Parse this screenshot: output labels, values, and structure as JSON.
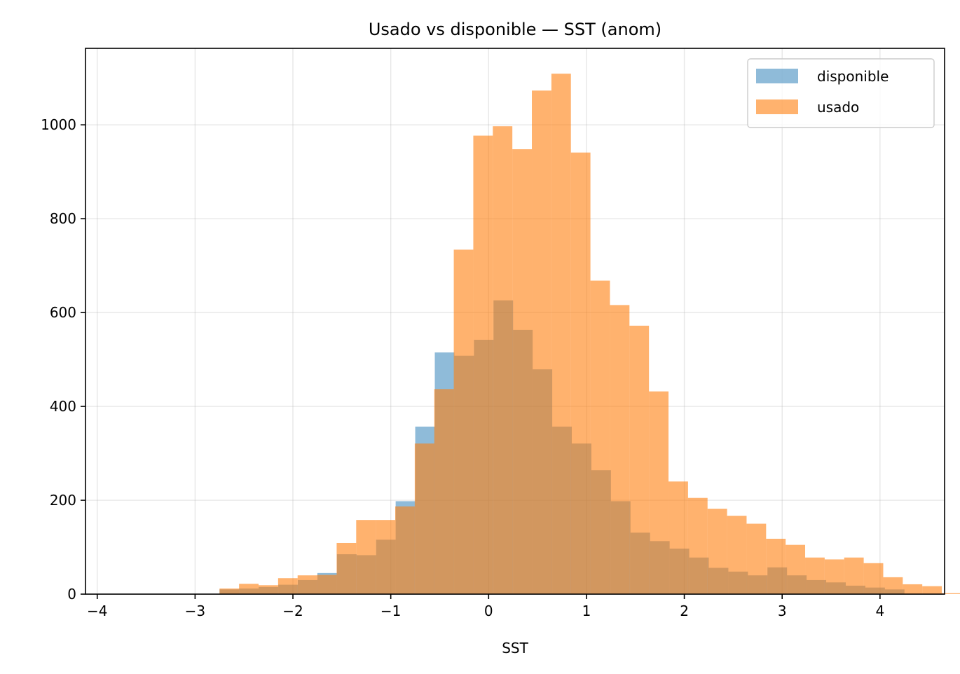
{
  "chart_data": {
    "type": "bar",
    "title": "Usado vs disponible — SST (anom)",
    "xlabel": "SST",
    "ylabel": "",
    "xlim": [
      -4.12,
      4.66
    ],
    "ylim": [
      0,
      1163
    ],
    "x_ticks": [
      -4,
      -3,
      -2,
      -1,
      0,
      1,
      2,
      3,
      4
    ],
    "x_tick_labels": [
      "−4",
      "−3",
      "−2",
      "−1",
      "0",
      "1",
      "2",
      "3",
      "4"
    ],
    "y_ticks": [
      0,
      200,
      400,
      600,
      800,
      1000
    ],
    "y_tick_labels": [
      "0",
      "200",
      "400",
      "600",
      "800",
      "1000"
    ],
    "grid": true,
    "legend_position": "top-right",
    "series": [
      {
        "name": "disponible",
        "color": "#1f77b4",
        "opacity": 0.5,
        "bin_start": -2.75,
        "bin_width": 0.2,
        "values": [
          10,
          12,
          15,
          20,
          30,
          45,
          85,
          83,
          116,
          198,
          357,
          515,
          508,
          542,
          626,
          563,
          479,
          357,
          321,
          264,
          198,
          131,
          113,
          97,
          78,
          56,
          48,
          40,
          57,
          40,
          30,
          25,
          18,
          14,
          10
        ]
      },
      {
        "name": "usado",
        "color": "#ff7f0e",
        "opacity": 0.6,
        "bin_start": -2.75,
        "bin_width": 0.1995,
        "values": [
          12,
          22,
          19,
          34,
          40,
          41,
          109,
          158,
          158,
          187,
          321,
          437,
          734,
          977,
          997,
          948,
          1073,
          1109,
          941,
          668,
          616,
          572,
          432,
          240,
          205,
          182,
          167,
          150,
          118,
          105,
          78,
          74,
          78,
          66,
          36,
          21,
          17,
          2,
          4,
          14,
          8
        ]
      }
    ]
  }
}
